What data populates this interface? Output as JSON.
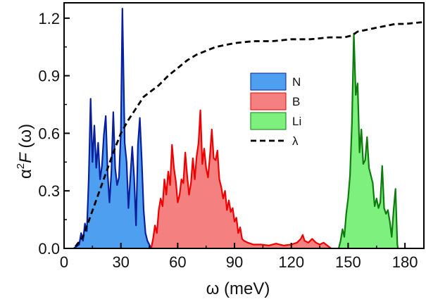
{
  "chart_data": {
    "type": "area",
    "xlabel_symbol": "ω",
    "xlabel_unit": "(meV)",
    "ylabel_alpha": "α",
    "ylabel_sup": "2",
    "ylabel_F": "F",
    "ylabel_arg": "(ω)",
    "xlim": [
      0,
      190
    ],
    "ylim": [
      0,
      1.28
    ],
    "xticks": [
      0,
      30,
      60,
      90,
      120,
      150,
      180
    ],
    "xtick_labels": [
      "0",
      "30",
      "60",
      "90",
      "120",
      "150",
      "180"
    ],
    "yticks": [
      0.0,
      0.3,
      0.6,
      0.9,
      1.2
    ],
    "ytick_labels": [
      "0.0",
      "0.3",
      "0.6",
      "0.9",
      "1.2"
    ],
    "series": [
      {
        "name": "N",
        "kind": "area",
        "fill": "#4f9ff0",
        "line": "#0a1f9c",
        "points": [
          [
            5,
            0
          ],
          [
            8,
            0.02
          ],
          [
            9,
            0.08
          ],
          [
            10,
            0.04
          ],
          [
            11,
            0.13
          ],
          [
            12,
            0.09
          ],
          [
            13,
            0.36
          ],
          [
            14,
            0.78
          ],
          [
            15,
            0.45
          ],
          [
            16,
            0.64
          ],
          [
            17,
            0.42
          ],
          [
            18,
            0.55
          ],
          [
            19,
            0.36
          ],
          [
            20,
            0.43
          ],
          [
            21,
            0.59
          ],
          [
            22,
            0.69
          ],
          [
            23,
            0.39
          ],
          [
            24,
            0.24
          ],
          [
            25,
            0.4
          ],
          [
            26,
            0.71
          ],
          [
            27,
            0.42
          ],
          [
            28,
            0.33
          ],
          [
            29,
            0.37
          ],
          [
            30,
            0.61
          ],
          [
            30.8,
            1.25
          ],
          [
            31.6,
            0.79
          ],
          [
            32,
            0.55
          ],
          [
            33,
            0.45
          ],
          [
            34,
            0.21
          ],
          [
            35,
            0.37
          ],
          [
            36,
            0.53
          ],
          [
            37,
            0.37
          ],
          [
            38,
            0.12
          ],
          [
            39,
            0.54
          ],
          [
            40,
            0.68
          ],
          [
            41,
            0.46
          ],
          [
            42,
            0.2
          ],
          [
            43,
            0.08
          ],
          [
            44,
            0.04
          ],
          [
            45,
            0.02
          ],
          [
            46,
            0
          ]
        ]
      },
      {
        "name": "B",
        "kind": "area",
        "fill": "#f48080",
        "line": "#ee0000",
        "points": [
          [
            46,
            0
          ],
          [
            47,
            0.05
          ],
          [
            48,
            0.12
          ],
          [
            49,
            0.08
          ],
          [
            50,
            0.2
          ],
          [
            51,
            0.26
          ],
          [
            52,
            0.22
          ],
          [
            53,
            0.36
          ],
          [
            54,
            0.28
          ],
          [
            55,
            0.4
          ],
          [
            56,
            0.33
          ],
          [
            57,
            0.54
          ],
          [
            58,
            0.42
          ],
          [
            59,
            0.35
          ],
          [
            60,
            0.24
          ],
          [
            61,
            0.28
          ],
          [
            62,
            0.36
          ],
          [
            63,
            0.34
          ],
          [
            64,
            0.5
          ],
          [
            65,
            0.38
          ],
          [
            66,
            0.28
          ],
          [
            67,
            0.34
          ],
          [
            68,
            0.47
          ],
          [
            69,
            0.36
          ],
          [
            70,
            0.48
          ],
          [
            71,
            0.55
          ],
          [
            72,
            0.72
          ],
          [
            73,
            0.44
          ],
          [
            74,
            0.52
          ],
          [
            75,
            0.42
          ],
          [
            76,
            0.37
          ],
          [
            77,
            0.48
          ],
          [
            78,
            0.62
          ],
          [
            79,
            0.47
          ],
          [
            80,
            0.46
          ],
          [
            81,
            0.51
          ],
          [
            82,
            0.36
          ],
          [
            83,
            0.32
          ],
          [
            84,
            0.26
          ],
          [
            85,
            0.3
          ],
          [
            86,
            0.2
          ],
          [
            87,
            0.25
          ],
          [
            88,
            0.19
          ],
          [
            89,
            0.21
          ],
          [
            90,
            0.14
          ],
          [
            91,
            0.16
          ],
          [
            92,
            0.08
          ],
          [
            93,
            0.11
          ],
          [
            94,
            0.05
          ],
          [
            95,
            0.04
          ],
          [
            97,
            0.03
          ],
          [
            100,
            0.02
          ],
          [
            104,
            0.02
          ],
          [
            108,
            0.015
          ],
          [
            112,
            0.025
          ],
          [
            116,
            0.015
          ],
          [
            120,
            0.02
          ],
          [
            123,
            0.03
          ],
          [
            125,
            0.05
          ],
          [
            126,
            0.07
          ],
          [
            127,
            0.04
          ],
          [
            129,
            0.03
          ],
          [
            131,
            0.05
          ],
          [
            133,
            0.03
          ],
          [
            135,
            0.02
          ],
          [
            137,
            0.03
          ],
          [
            139,
            0.015
          ],
          [
            141,
            0
          ]
        ]
      },
      {
        "name": "Li",
        "kind": "area",
        "fill": "#7ef07e",
        "line": "#0e7c0e",
        "points": [
          [
            145,
            0
          ],
          [
            146,
            0.04
          ],
          [
            147,
            0.1
          ],
          [
            148,
            0.06
          ],
          [
            149,
            0.18
          ],
          [
            150,
            0.26
          ],
          [
            151,
            0.38
          ],
          [
            152,
            0.65
          ],
          [
            153,
            1.12
          ],
          [
            154,
            0.8
          ],
          [
            155,
            0.86
          ],
          [
            156,
            0.5
          ],
          [
            157,
            0.62
          ],
          [
            158,
            0.44
          ],
          [
            159,
            0.46
          ],
          [
            160,
            0.58
          ],
          [
            161,
            0.42
          ],
          [
            162,
            0.38
          ],
          [
            163,
            0.34
          ],
          [
            164,
            0.22
          ],
          [
            165,
            0.26
          ],
          [
            166,
            0.21
          ],
          [
            167,
            0.24
          ],
          [
            168,
            0.43
          ],
          [
            169,
            0.21
          ],
          [
            170,
            0.18
          ],
          [
            171,
            0.2
          ],
          [
            172,
            0.14
          ],
          [
            173,
            0.06
          ],
          [
            174,
            0.2
          ],
          [
            175,
            0.31
          ],
          [
            176,
            0.02
          ],
          [
            176.3,
            0
          ]
        ]
      },
      {
        "name": "λ",
        "kind": "line",
        "color": "#000000",
        "dash": "8,5",
        "points": [
          [
            6,
            0.01
          ],
          [
            10,
            0.06
          ],
          [
            14,
            0.17
          ],
          [
            18,
            0.28
          ],
          [
            22,
            0.39
          ],
          [
            26,
            0.5
          ],
          [
            30,
            0.6
          ],
          [
            34,
            0.67
          ],
          [
            38,
            0.73
          ],
          [
            42,
            0.79
          ],
          [
            46,
            0.82
          ],
          [
            50,
            0.85
          ],
          [
            55,
            0.9
          ],
          [
            60,
            0.94
          ],
          [
            65,
            0.98
          ],
          [
            70,
            1.01
          ],
          [
            75,
            1.03
          ],
          [
            80,
            1.05
          ],
          [
            85,
            1.06
          ],
          [
            90,
            1.07
          ],
          [
            100,
            1.08
          ],
          [
            110,
            1.08
          ],
          [
            120,
            1.09
          ],
          [
            130,
            1.09
          ],
          [
            140,
            1.1
          ],
          [
            148,
            1.1
          ],
          [
            152,
            1.11
          ],
          [
            155,
            1.13
          ],
          [
            160,
            1.14
          ],
          [
            165,
            1.15
          ],
          [
            170,
            1.16
          ],
          [
            175,
            1.17
          ],
          [
            180,
            1.17
          ],
          [
            190,
            1.18
          ]
        ]
      }
    ],
    "legend": {
      "position": "center-right",
      "entries": [
        {
          "label": "N",
          "swatch": "#4f9ff0",
          "border": "#0a1f9c"
        },
        {
          "label": "B",
          "swatch": "#f48080",
          "border": "#ee0000"
        },
        {
          "label": "Li",
          "swatch": "#7ef07e",
          "border": "#0e7c0e"
        },
        {
          "label": "λ",
          "swatch": "dash"
        }
      ]
    }
  }
}
